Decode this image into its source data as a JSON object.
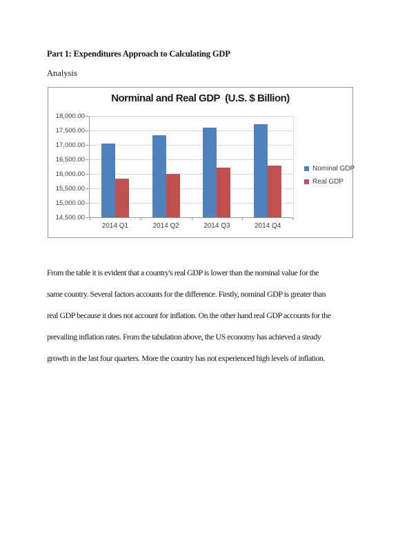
{
  "document": {
    "heading": "Part 1: Expenditures Approach to Calculating GDP",
    "subheading": "Analysis",
    "paragraph_lines": [
      "From the table it is evident that a country's real GDP is lower than the nominal value for the",
      "same country. Several factors accounts for the difference. Firstly, nominal GDP is greater than",
      "real GDP because it does not account for inflation. On the other hand real GDP accounts for the",
      "prevailing inflation rates. From the tabulation above, the US economy has achieved a steady",
      "growth in the last four quarters. More the country has not experienced high levels of inflation."
    ]
  },
  "chart_data": {
    "type": "bar",
    "title": "Norminal and Real GDP  (U.S. $ Billion)",
    "categories": [
      "2014 Q1",
      "2014 Q2",
      "2014 Q3",
      "2014 Q4"
    ],
    "series": [
      {
        "name": "Nominal GDP",
        "color": "#4f81bd",
        "values": [
          17045,
          17330,
          17600,
          17705
        ]
      },
      {
        "name": "Real GDP",
        "color": "#c0504d",
        "values": [
          15830,
          16010,
          16205,
          16295
        ]
      }
    ],
    "ylim": [
      14500,
      18000
    ],
    "ytick_step": 500,
    "ytick_labels": [
      "14,500.00",
      "15,000.00",
      "15,500.00",
      "16,000.00",
      "16,500.00",
      "17,000.00",
      "17,500.00",
      "18,000.00"
    ],
    "xlabel": "",
    "ylabel": "",
    "grid": true,
    "legend_position": "right",
    "gridline_color": "#d9d9d9",
    "axis_color": "#9b9b9b"
  }
}
